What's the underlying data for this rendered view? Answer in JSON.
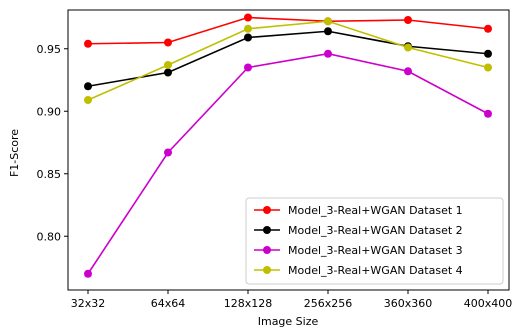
{
  "chart_data": {
    "type": "line",
    "title": "",
    "xlabel": "Image Size",
    "ylabel": "F1-Score",
    "categories": [
      "32x32",
      "64x64",
      "128x128",
      "256x256",
      "360x360",
      "400x400"
    ],
    "ylim": [
      0.757,
      0.981
    ],
    "yticks": [
      0.8,
      0.85,
      0.9,
      0.95
    ],
    "ytick_labels": [
      "0.80",
      "0.85",
      "0.90",
      "0.95"
    ],
    "grid": false,
    "legend_position": "lower-right",
    "marker": "circle",
    "series": [
      {
        "name": "Model_3-Real+WGAN Dataset 1",
        "color": "#ff0000",
        "values": [
          0.954,
          0.955,
          0.975,
          0.972,
          0.973,
          0.966
        ]
      },
      {
        "name": "Model_3-Real+WGAN Dataset 2",
        "color": "#000000",
        "values": [
          0.92,
          0.931,
          0.959,
          0.964,
          0.952,
          0.946
        ]
      },
      {
        "name": "Model_3-Real+WGAN Dataset 3",
        "color": "#cc00cc",
        "values": [
          0.77,
          0.867,
          0.935,
          0.946,
          0.932,
          0.898
        ]
      },
      {
        "name": "Model_3-Real+WGAN Dataset 4",
        "color": "#bfbf00",
        "values": [
          0.909,
          0.937,
          0.966,
          0.972,
          0.951,
          0.935
        ]
      }
    ]
  }
}
